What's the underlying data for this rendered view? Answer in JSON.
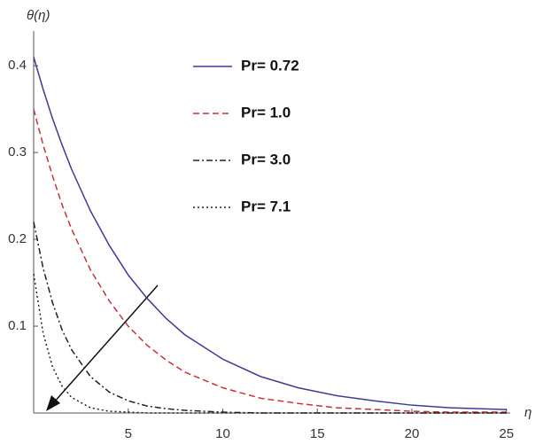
{
  "chart_data": {
    "type": "line",
    "x_label": "η",
    "y_label": "θ(η)",
    "x": [
      0,
      0.5,
      1,
      1.5,
      2,
      3,
      4,
      5,
      6,
      7,
      8,
      10,
      12,
      14,
      16,
      18,
      20,
      22,
      25
    ],
    "series": [
      {
        "name": "Pr= 0.72",
        "color": "#3c3c96",
        "dash": "solid",
        "values": [
          0.41,
          0.373,
          0.339,
          0.309,
          0.281,
          0.233,
          0.193,
          0.159,
          0.132,
          0.109,
          0.09,
          0.062,
          0.042,
          0.029,
          0.02,
          0.014,
          0.009,
          0.006,
          0.004
        ]
      },
      {
        "name": "Pr= 1.0",
        "color": "#c8323c",
        "dash": "dashed",
        "values": [
          0.35,
          0.309,
          0.273,
          0.24,
          0.212,
          0.165,
          0.129,
          0.1,
          0.078,
          0.061,
          0.047,
          0.029,
          0.017,
          0.011,
          0.006,
          0.004,
          0.002,
          0.001,
          0.001
        ]
      },
      {
        "name": "Pr= 3.0",
        "color": "#222222",
        "dash": "dashdot",
        "values": [
          0.22,
          0.167,
          0.127,
          0.096,
          0.073,
          0.042,
          0.024,
          0.014,
          0.008,
          0.005,
          0.003,
          0.001,
          0,
          0,
          0,
          0,
          0,
          0,
          0
        ]
      },
      {
        "name": "Pr= 7.1",
        "color": "#222222",
        "dash": "dotted",
        "values": [
          0.16,
          0.092,
          0.053,
          0.031,
          0.018,
          0.006,
          0.002,
          0.001,
          0,
          0,
          0,
          0,
          0,
          0,
          0,
          0,
          0,
          0,
          0
        ]
      }
    ],
    "xlim": [
      0,
      25.2
    ],
    "ylim": [
      0,
      0.44
    ],
    "xticks": [
      5,
      10,
      15,
      20,
      25
    ],
    "yticks": [
      0.1,
      0.2,
      0.3,
      0.4
    ],
    "legend": "top"
  }
}
